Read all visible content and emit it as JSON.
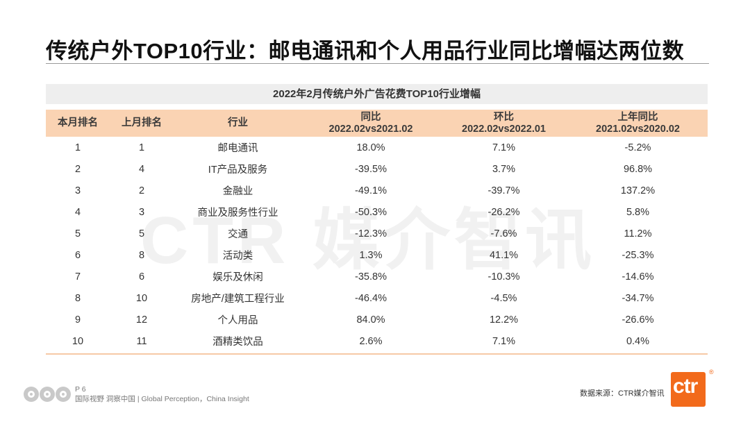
{
  "title": "传统户外TOP10行业：邮电通讯和个人用品行业同比增幅达两位数",
  "watermark": "CTR 媒介智讯",
  "table": {
    "caption": "2022年2月传统户外广告花费TOP10行业增幅",
    "headers": [
      {
        "line1": "本月排名",
        "line2": ""
      },
      {
        "line1": "上月排名",
        "line2": ""
      },
      {
        "line1": "行业",
        "line2": ""
      },
      {
        "line1": "同比",
        "line2": "2022.02vs2021.02"
      },
      {
        "line1": "环比",
        "line2": "2022.02vs2022.01"
      },
      {
        "line1": "上年同比",
        "line2": "2021.02vs2020.02"
      }
    ],
    "rows": [
      [
        "1",
        "1",
        "邮电通讯",
        "18.0%",
        "7.1%",
        "-5.2%"
      ],
      [
        "2",
        "4",
        "IT产品及服务",
        "-39.5%",
        "3.7%",
        "96.8%"
      ],
      [
        "3",
        "2",
        "金融业",
        "-49.1%",
        "-39.7%",
        "137.2%"
      ],
      [
        "4",
        "3",
        "商业及服务性行业",
        "-50.3%",
        "-26.2%",
        "5.8%"
      ],
      [
        "5",
        "5",
        "交通",
        "-12.3%",
        "-7.6%",
        "11.2%"
      ],
      [
        "6",
        "8",
        "活动类",
        "1.3%",
        "41.1%",
        "-25.3%"
      ],
      [
        "7",
        "6",
        "娱乐及休闲",
        "-35.8%",
        "-10.3%",
        "-14.6%"
      ],
      [
        "8",
        "10",
        "房地产/建筑工程行业",
        "-46.4%",
        "-4.5%",
        "-34.7%"
      ],
      [
        "9",
        "12",
        "个人用品",
        "84.0%",
        "12.2%",
        "-26.6%"
      ],
      [
        "10",
        "11",
        "酒精类饮品",
        "2.6%",
        "7.1%",
        "0.4%"
      ]
    ]
  },
  "footer": {
    "page": "P 6",
    "slogan": "国际视野  洞察中国 | Global Perception，China Insight",
    "source": "数据来源：CTR媒介智讯",
    "logo_text": "ctr",
    "registered": "®"
  },
  "colors": {
    "header_bg": "#fad3b3",
    "caption_bg": "#eeeeee",
    "brand": "#f26a1b"
  }
}
